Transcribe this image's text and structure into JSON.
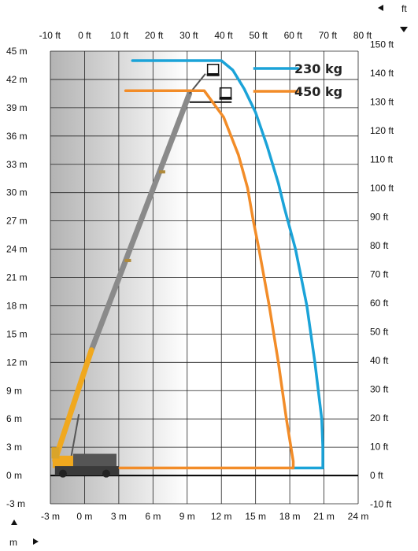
{
  "chart_data": {
    "type": "line",
    "x_m_ticks": [
      "-3 m",
      "0 m",
      "3 m",
      "6 m",
      "9 m",
      "12 m",
      "15 m",
      "18 m",
      "21 m",
      "24 m"
    ],
    "x_m_values": [
      -3,
      0,
      3,
      6,
      9,
      12,
      15,
      18,
      21,
      24
    ],
    "y_m_ticks": [
      "-3 m",
      "0 m",
      "3 m",
      "6 m",
      "9 m",
      "12 m",
      "15 m",
      "18 m",
      "21 m",
      "24 m",
      "27 m",
      "30 m",
      "33 m",
      "36 m",
      "39 m",
      "42 m",
      "45 m"
    ],
    "y_m_values": [
      -3,
      0,
      3,
      6,
      9,
      12,
      15,
      18,
      21,
      24,
      27,
      30,
      33,
      36,
      39,
      42,
      45
    ],
    "x_ft_ticks": [
      "-10 ft",
      "0 ft",
      "10 ft",
      "20 ft",
      "30 ft",
      "40 ft",
      "50 ft",
      "60 ft",
      "70 ft",
      "80 ft"
    ],
    "x_ft_values": [
      -10,
      0,
      10,
      20,
      30,
      40,
      50,
      60,
      70,
      80
    ],
    "y_ft_ticks": [
      "-10 ft",
      "0 ft",
      "10 ft",
      "20 ft",
      "30 ft",
      "40 ft",
      "50 ft",
      "60 ft",
      "70 ft",
      "80 ft",
      "90 ft",
      "100 ft",
      "110 ft",
      "120 ft",
      "130 ft",
      "140 ft",
      "150 ft"
    ],
    "y_ft_values": [
      -10,
      0,
      10,
      20,
      30,
      40,
      50,
      60,
      70,
      80,
      90,
      100,
      110,
      120,
      130,
      140,
      150
    ],
    "xlim": [
      -3,
      24
    ],
    "ylim": [
      -3,
      45
    ],
    "grid": true,
    "unit_labels": {
      "ft": "ft",
      "m": "m"
    },
    "series": [
      {
        "name": "230 kg",
        "color": "#1BA3D8",
        "x": [
          4.2,
          12,
          13,
          14,
          15,
          16,
          17,
          17.5,
          18.5,
          19.5,
          20.2,
          20.8,
          20.9,
          20.9,
          18.2
        ],
        "y": [
          44.0,
          44.0,
          43.0,
          41.0,
          38.5,
          35.0,
          31.0,
          28.5,
          24.0,
          18.0,
          12.0,
          6.0,
          3.0,
          0.8,
          0.8
        ]
      },
      {
        "name": "450 kg",
        "color": "#F28C28",
        "x": [
          3.6,
          10.5,
          12.2,
          13.5,
          14.3,
          14.8,
          15.3,
          16.2,
          17.0,
          17.7,
          18.1,
          18.3,
          18.3,
          3.1
        ],
        "y": [
          40.8,
          40.8,
          38.0,
          34.0,
          30.5,
          27.0,
          24.0,
          18.0,
          12.0,
          6.0,
          3.0,
          1.5,
          0.8,
          0.8
        ]
      }
    ]
  },
  "colors": {
    "grid": "#222222",
    "ground_line": "#000000",
    "shade": "#bdbdbd",
    "boom_grey": "#8a8a8a",
    "boom_yellow": "#F0A81E"
  },
  "icons": [
    "arrow-left-icon",
    "arrow-down-icon",
    "arrow-up-icon",
    "arrow-right-icon",
    "telehandler-machine-icon",
    "platform-basket-icon"
  ]
}
